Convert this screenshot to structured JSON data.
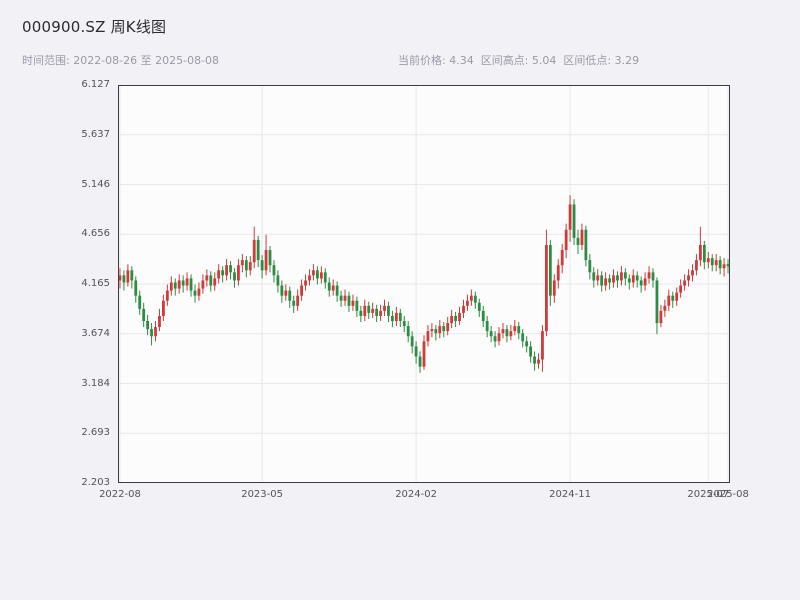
{
  "header": {
    "title": "000900.SZ 周K线图",
    "subtitle_left": "时间范围: 2022-08-26 至 2025-08-08",
    "subtitle_right": "当前价格: 4.34  区间高点: 5.04  区间低点: 3.29"
  },
  "chart_data": {
    "type": "candlestick",
    "title": "000900.SZ 周K线图",
    "symbol": "000900.SZ",
    "interval": "weekly",
    "date_range": {
      "start": "2022-08-26",
      "end": "2025-08-08"
    },
    "current_price": 4.34,
    "range_high": 5.04,
    "range_low": 3.29,
    "ylim": [
      2.203,
      6.127
    ],
    "y_ticks": [
      "6.127",
      "5.637",
      "5.146",
      "4.656",
      "4.165",
      "3.674",
      "3.184",
      "2.693",
      "2.203"
    ],
    "x_ticks": [
      {
        "index": 0,
        "label": "2022-08"
      },
      {
        "index": 36,
        "label": "2023-05"
      },
      {
        "index": 75,
        "label": "2024-02"
      },
      {
        "index": 114,
        "label": "2024-11"
      },
      {
        "index": 149,
        "label": "2025-07"
      },
      {
        "index": 154,
        "label": "2025-08"
      }
    ],
    "grid": true,
    "colors": {
      "up": "#cf3a3a",
      "down": "#2e8b44",
      "grid": "#e7e7ee",
      "border": "#3c3c44"
    },
    "start_date": "2022-08-26",
    "interval_days": 7,
    "ohlc": [
      [
        4.2,
        4.32,
        4.12,
        4.25
      ],
      [
        4.25,
        4.3,
        4.1,
        4.18
      ],
      [
        4.18,
        4.36,
        4.14,
        4.3
      ],
      [
        4.3,
        4.34,
        4.12,
        4.2
      ],
      [
        4.2,
        4.24,
        3.98,
        4.05
      ],
      [
        4.05,
        4.1,
        3.86,
        3.92
      ],
      [
        3.92,
        3.98,
        3.74,
        3.8
      ],
      [
        3.8,
        3.86,
        3.66,
        3.72
      ],
      [
        3.72,
        3.78,
        3.56,
        3.65
      ],
      [
        3.65,
        3.8,
        3.6,
        3.74
      ],
      [
        3.74,
        3.92,
        3.7,
        3.85
      ],
      [
        3.85,
        4.06,
        3.8,
        4.0
      ],
      [
        4.0,
        4.16,
        3.95,
        4.1
      ],
      [
        4.1,
        4.24,
        4.05,
        4.18
      ],
      [
        4.18,
        4.22,
        4.05,
        4.12
      ],
      [
        4.12,
        4.26,
        4.07,
        4.2
      ],
      [
        4.2,
        4.25,
        4.08,
        4.15
      ],
      [
        4.15,
        4.28,
        4.1,
        4.22
      ],
      [
        4.22,
        4.26,
        4.04,
        4.1
      ],
      [
        4.1,
        4.16,
        3.98,
        4.05
      ],
      [
        4.05,
        4.18,
        4.0,
        4.12
      ],
      [
        4.12,
        4.26,
        4.07,
        4.2
      ],
      [
        4.2,
        4.31,
        4.14,
        4.25
      ],
      [
        4.25,
        4.29,
        4.09,
        4.15
      ],
      [
        4.15,
        4.28,
        4.1,
        4.22
      ],
      [
        4.22,
        4.36,
        4.17,
        4.3
      ],
      [
        4.3,
        4.34,
        4.18,
        4.25
      ],
      [
        4.25,
        4.41,
        4.2,
        4.35
      ],
      [
        4.35,
        4.39,
        4.21,
        4.28
      ],
      [
        4.28,
        4.32,
        4.13,
        4.2
      ],
      [
        4.2,
        4.41,
        4.15,
        4.35
      ],
      [
        4.35,
        4.46,
        4.28,
        4.4
      ],
      [
        4.4,
        4.44,
        4.23,
        4.3
      ],
      [
        4.3,
        4.44,
        4.25,
        4.38
      ],
      [
        4.38,
        4.73,
        4.32,
        4.6
      ],
      [
        4.6,
        4.64,
        4.33,
        4.4
      ],
      [
        4.4,
        4.45,
        4.22,
        4.3
      ],
      [
        4.3,
        4.65,
        4.25,
        4.5
      ],
      [
        4.5,
        4.54,
        4.28,
        4.35
      ],
      [
        4.35,
        4.4,
        4.18,
        4.25
      ],
      [
        4.25,
        4.3,
        4.08,
        4.15
      ],
      [
        4.15,
        4.2,
        3.98,
        4.05
      ],
      [
        4.05,
        4.16,
        4.0,
        4.1
      ],
      [
        4.1,
        4.14,
        3.93,
        4.0
      ],
      [
        4.0,
        4.05,
        3.88,
        3.95
      ],
      [
        3.95,
        4.11,
        3.9,
        4.05
      ],
      [
        4.05,
        4.21,
        4.0,
        4.15
      ],
      [
        4.15,
        4.26,
        4.1,
        4.2
      ],
      [
        4.2,
        4.31,
        4.15,
        4.25
      ],
      [
        4.25,
        4.36,
        4.2,
        4.3
      ],
      [
        4.3,
        4.34,
        4.16,
        4.22
      ],
      [
        4.22,
        4.34,
        4.17,
        4.28
      ],
      [
        4.28,
        4.32,
        4.12,
        4.18
      ],
      [
        4.18,
        4.23,
        4.04,
        4.1
      ],
      [
        4.1,
        4.21,
        4.05,
        4.15
      ],
      [
        4.15,
        4.19,
        3.99,
        4.05
      ],
      [
        4.05,
        4.1,
        3.94,
        4.0
      ],
      [
        4.0,
        4.11,
        3.95,
        4.05
      ],
      [
        4.05,
        4.09,
        3.89,
        3.95
      ],
      [
        3.95,
        4.06,
        3.9,
        4.0
      ],
      [
        4.0,
        4.04,
        3.84,
        3.9
      ],
      [
        3.9,
        3.95,
        3.79,
        3.85
      ],
      [
        3.85,
        4.01,
        3.8,
        3.95
      ],
      [
        3.95,
        3.99,
        3.82,
        3.88
      ],
      [
        3.88,
        3.98,
        3.83,
        3.92
      ],
      [
        3.92,
        3.96,
        3.79,
        3.85
      ],
      [
        3.85,
        3.96,
        3.8,
        3.9
      ],
      [
        3.9,
        4.01,
        3.85,
        3.95
      ],
      [
        3.95,
        3.99,
        3.79,
        3.85
      ],
      [
        3.85,
        3.9,
        3.74,
        3.8
      ],
      [
        3.8,
        3.94,
        3.75,
        3.88
      ],
      [
        3.88,
        3.92,
        3.74,
        3.8
      ],
      [
        3.8,
        3.85,
        3.69,
        3.75
      ],
      [
        3.75,
        3.8,
        3.59,
        3.65
      ],
      [
        3.65,
        3.7,
        3.48,
        3.55
      ],
      [
        3.55,
        3.6,
        3.38,
        3.45
      ],
      [
        3.45,
        3.5,
        3.29,
        3.35
      ],
      [
        3.35,
        3.66,
        3.32,
        3.6
      ],
      [
        3.6,
        3.76,
        3.55,
        3.7
      ],
      [
        3.7,
        3.78,
        3.64,
        3.72
      ],
      [
        3.72,
        3.76,
        3.61,
        3.68
      ],
      [
        3.68,
        3.81,
        3.63,
        3.75
      ],
      [
        3.75,
        3.79,
        3.64,
        3.7
      ],
      [
        3.7,
        3.84,
        3.66,
        3.78
      ],
      [
        3.78,
        3.91,
        3.73,
        3.85
      ],
      [
        3.85,
        3.89,
        3.74,
        3.8
      ],
      [
        3.8,
        3.94,
        3.76,
        3.88
      ],
      [
        3.88,
        4.01,
        3.83,
        3.95
      ],
      [
        3.95,
        4.06,
        3.9,
        4.0
      ],
      [
        4.0,
        4.11,
        3.95,
        4.05
      ],
      [
        4.05,
        4.09,
        3.92,
        3.98
      ],
      [
        3.98,
        4.02,
        3.84,
        3.9
      ],
      [
        3.9,
        3.95,
        3.74,
        3.8
      ],
      [
        3.8,
        3.85,
        3.64,
        3.7
      ],
      [
        3.7,
        3.75,
        3.59,
        3.65
      ],
      [
        3.65,
        3.7,
        3.54,
        3.6
      ],
      [
        3.6,
        3.74,
        3.56,
        3.68
      ],
      [
        3.68,
        3.78,
        3.63,
        3.72
      ],
      [
        3.72,
        3.76,
        3.59,
        3.65
      ],
      [
        3.65,
        3.76,
        3.61,
        3.7
      ],
      [
        3.7,
        3.81,
        3.66,
        3.75
      ],
      [
        3.75,
        3.79,
        3.62,
        3.68
      ],
      [
        3.68,
        3.72,
        3.54,
        3.6
      ],
      [
        3.6,
        3.65,
        3.49,
        3.55
      ],
      [
        3.55,
        3.6,
        3.39,
        3.45
      ],
      [
        3.45,
        3.5,
        3.31,
        3.38
      ],
      [
        3.38,
        3.48,
        3.33,
        3.42
      ],
      [
        3.42,
        3.76,
        3.3,
        3.7
      ],
      [
        3.7,
        4.7,
        3.65,
        4.55
      ],
      [
        4.55,
        4.6,
        3.95,
        4.05
      ],
      [
        4.05,
        4.26,
        3.98,
        4.2
      ],
      [
        4.2,
        4.41,
        4.12,
        4.35
      ],
      [
        4.35,
        4.56,
        4.27,
        4.5
      ],
      [
        4.5,
        4.76,
        4.42,
        4.7
      ],
      [
        4.7,
        5.04,
        4.58,
        4.95
      ],
      [
        4.95,
        5.0,
        4.55,
        4.62
      ],
      [
        4.62,
        4.7,
        4.46,
        4.55
      ],
      [
        4.55,
        4.76,
        4.5,
        4.7
      ],
      [
        4.7,
        4.74,
        4.34,
        4.4
      ],
      [
        4.4,
        4.46,
        4.21,
        4.28
      ],
      [
        4.28,
        4.33,
        4.13,
        4.2
      ],
      [
        4.2,
        4.31,
        4.15,
        4.25
      ],
      [
        4.25,
        4.29,
        4.09,
        4.15
      ],
      [
        4.15,
        4.28,
        4.1,
        4.22
      ],
      [
        4.22,
        4.26,
        4.11,
        4.18
      ],
      [
        4.18,
        4.31,
        4.13,
        4.25
      ],
      [
        4.25,
        4.29,
        4.13,
        4.2
      ],
      [
        4.2,
        4.34,
        4.15,
        4.28
      ],
      [
        4.28,
        4.32,
        4.15,
        4.22
      ],
      [
        4.22,
        4.26,
        4.11,
        4.18
      ],
      [
        4.18,
        4.31,
        4.13,
        4.25
      ],
      [
        4.25,
        4.29,
        4.13,
        4.2
      ],
      [
        4.2,
        4.24,
        4.08,
        4.15
      ],
      [
        4.15,
        4.28,
        4.1,
        4.22
      ],
      [
        4.22,
        4.34,
        4.17,
        4.28
      ],
      [
        4.28,
        4.32,
        4.13,
        4.2
      ],
      [
        4.2,
        4.23,
        3.67,
        3.78
      ],
      [
        3.78,
        3.96,
        3.74,
        3.9
      ],
      [
        3.9,
        4.01,
        3.84,
        3.95
      ],
      [
        3.95,
        4.11,
        3.9,
        4.05
      ],
      [
        4.05,
        4.09,
        3.93,
        4.0
      ],
      [
        4.0,
        4.13,
        3.95,
        4.08
      ],
      [
        4.08,
        4.21,
        4.03,
        4.15
      ],
      [
        4.15,
        4.26,
        4.1,
        4.2
      ],
      [
        4.2,
        4.31,
        4.14,
        4.25
      ],
      [
        4.25,
        4.36,
        4.19,
        4.3
      ],
      [
        4.3,
        4.46,
        4.25,
        4.4
      ],
      [
        4.4,
        4.73,
        4.34,
        4.55
      ],
      [
        4.55,
        4.59,
        4.31,
        4.38
      ],
      [
        4.38,
        4.48,
        4.32,
        4.42
      ],
      [
        4.42,
        4.46,
        4.29,
        4.35
      ],
      [
        4.35,
        4.46,
        4.29,
        4.4
      ],
      [
        4.4,
        4.44,
        4.26,
        4.32
      ],
      [
        4.32,
        4.42,
        4.24,
        4.36
      ],
      [
        4.36,
        4.41,
        4.27,
        4.34
      ]
    ]
  }
}
